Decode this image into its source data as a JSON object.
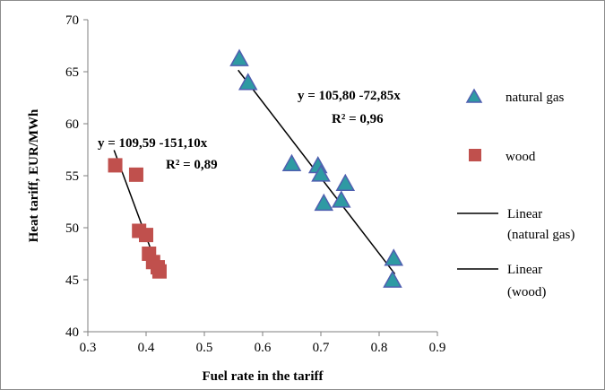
{
  "chart_data": {
    "type": "scatter",
    "title": "",
    "xlabel": "Fuel rate in the tariff",
    "ylabel": "Heat  tariff, EUR/MWh",
    "xlim": [
      0.3,
      0.9
    ],
    "ylim": [
      40,
      70
    ],
    "x_ticks": [
      {
        "value": 0.3,
        "label": "0.3"
      },
      {
        "value": 0.4,
        "label": "0.4"
      },
      {
        "value": 0.5,
        "label": "0.5"
      },
      {
        "value": 0.6,
        "label": "0.6"
      },
      {
        "value": 0.7,
        "label": "0.7"
      },
      {
        "value": 0.8,
        "label": "0.8"
      },
      {
        "value": 0.9,
        "label": "0.9"
      }
    ],
    "y_ticks": [
      {
        "value": 40,
        "label": "40"
      },
      {
        "value": 45,
        "label": "45"
      },
      {
        "value": 50,
        "label": "50"
      },
      {
        "value": 55,
        "label": "55"
      },
      {
        "value": 60,
        "label": "60"
      },
      {
        "value": 65,
        "label": "65"
      },
      {
        "value": 70,
        "label": "70"
      }
    ],
    "grid": false,
    "legend_position": "right",
    "series": [
      {
        "name": "natural gas",
        "marker": "triangle",
        "color": "#2e9aa3",
        "edge_color": "#4f5fb0",
        "points": [
          {
            "x": 0.56,
            "y": 66.2
          },
          {
            "x": 0.575,
            "y": 63.9
          },
          {
            "x": 0.65,
            "y": 56.1
          },
          {
            "x": 0.695,
            "y": 55.9
          },
          {
            "x": 0.7,
            "y": 55.1
          },
          {
            "x": 0.705,
            "y": 52.3
          },
          {
            "x": 0.735,
            "y": 52.6
          },
          {
            "x": 0.742,
            "y": 54.2
          },
          {
            "x": 0.825,
            "y": 47.0
          },
          {
            "x": 0.823,
            "y": 44.9
          }
        ]
      },
      {
        "name": "wood",
        "marker": "square",
        "color": "#c0504d",
        "edge_color": "#c0504d",
        "points": [
          {
            "x": 0.347,
            "y": 56.0
          },
          {
            "x": 0.383,
            "y": 55.1
          },
          {
            "x": 0.388,
            "y": 49.7
          },
          {
            "x": 0.4,
            "y": 49.3
          },
          {
            "x": 0.405,
            "y": 47.5
          },
          {
            "x": 0.412,
            "y": 46.7
          },
          {
            "x": 0.42,
            "y": 46.2
          },
          {
            "x": 0.423,
            "y": 45.8
          }
        ]
      }
    ],
    "trendlines": [
      {
        "name": "Linear\n(natural gas)",
        "legend_lines": [
          "Linear",
          "(natural gas)"
        ],
        "color": "#000000",
        "intercept": 105.8,
        "slope": -72.85,
        "x_range": [
          0.558,
          0.827
        ],
        "equation": "y = 105,80 -72,85x",
        "r2": "R² = 0,96"
      },
      {
        "name": "Linear\n(wood)",
        "legend_lines": [
          "Linear",
          "(wood)"
        ],
        "color": "#000000",
        "intercept": 109.59,
        "slope": -151.1,
        "x_range": [
          0.345,
          0.423
        ],
        "equation": "y = 109,59 -151,10x",
        "r2": "R² = 0,89"
      }
    ]
  }
}
